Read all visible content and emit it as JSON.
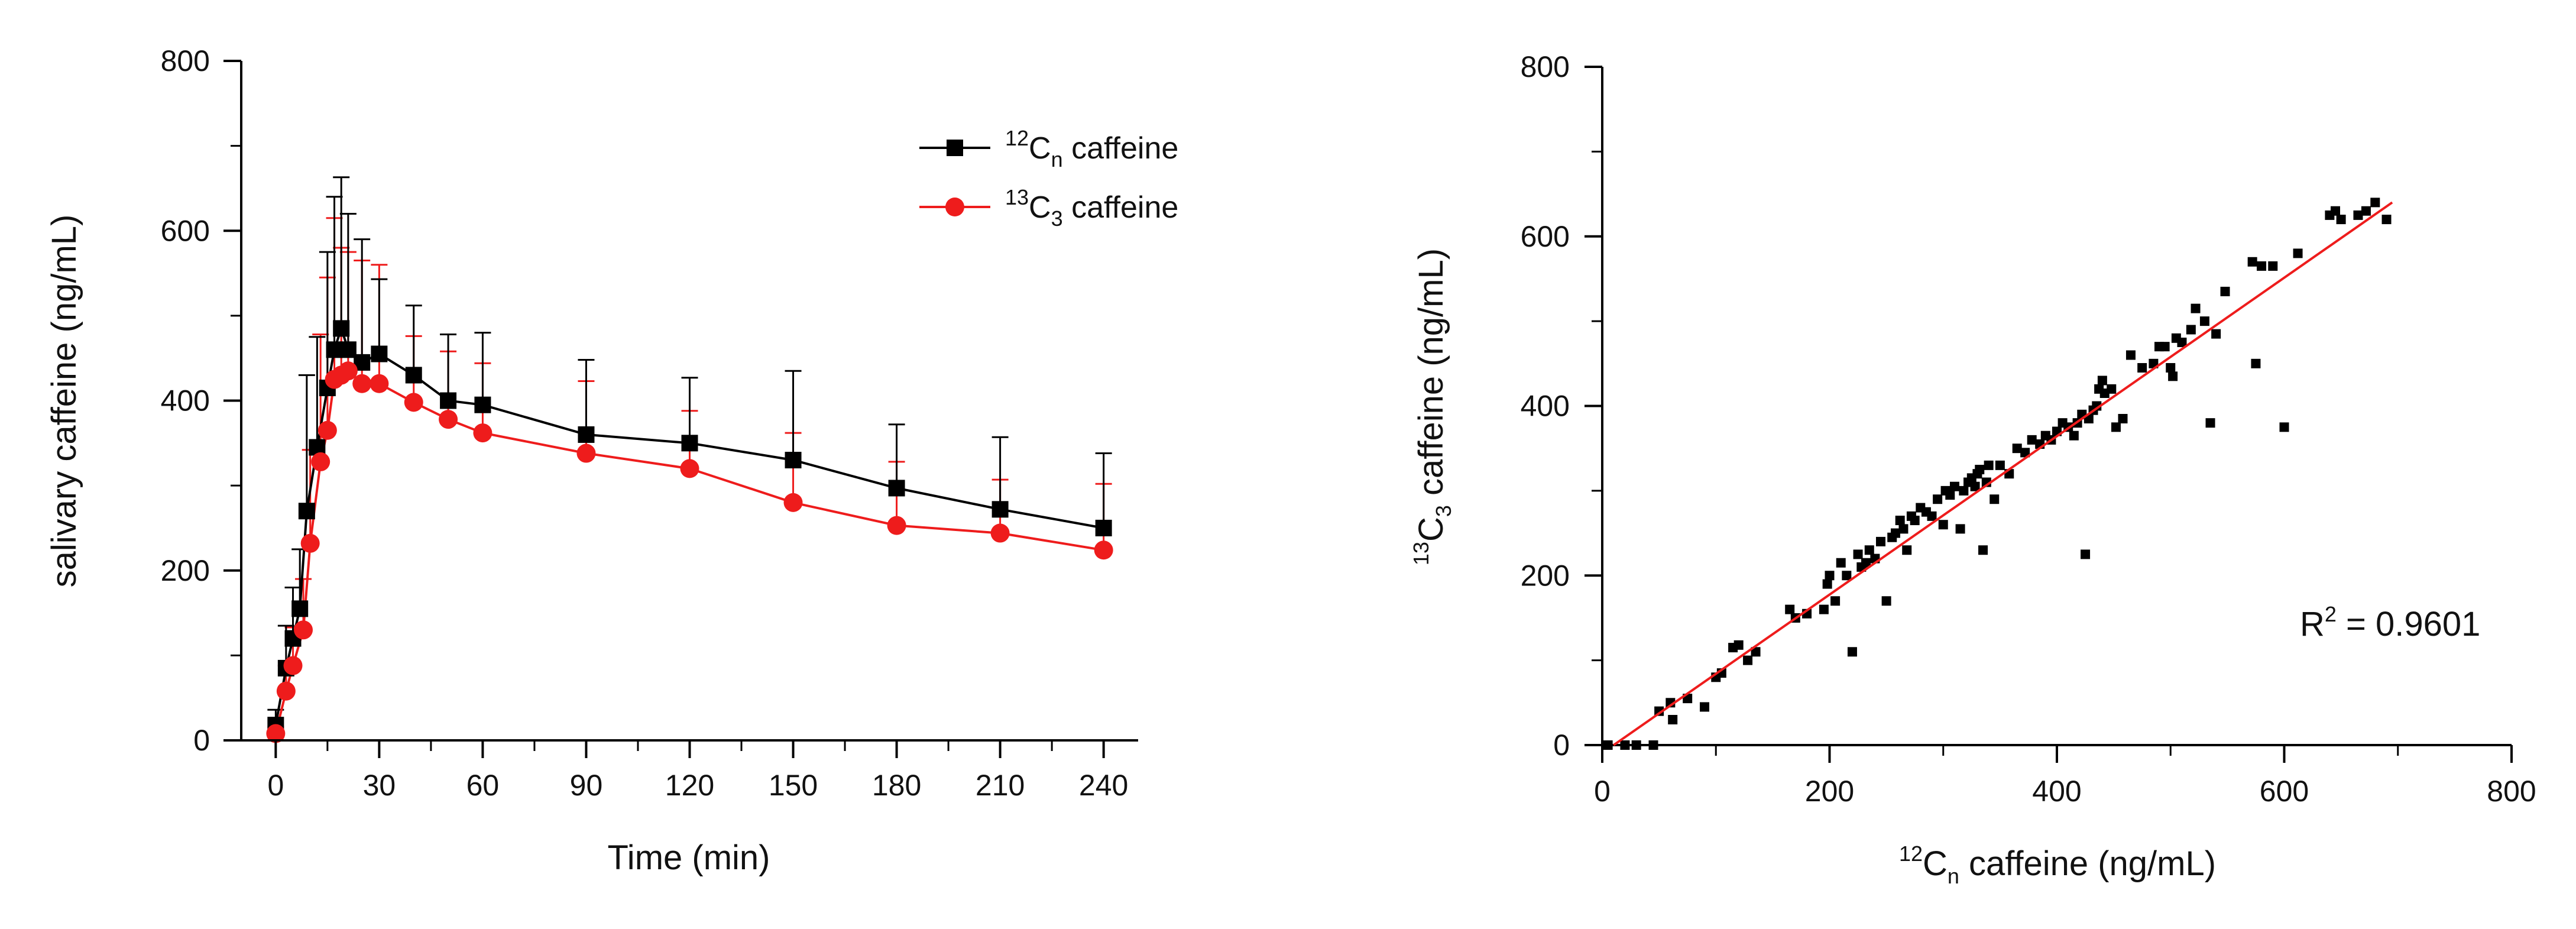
{
  "chart_data": [
    {
      "type": "line",
      "title": "",
      "xlabel": "Time (min)",
      "ylabel": "salivary caffeine (ng/mL)",
      "xlim": [
        -10,
        250
      ],
      "ylim": [
        0,
        800
      ],
      "xticks": [
        "0",
        "30",
        "60",
        "90",
        "120",
        "150",
        "180",
        "210",
        "240"
      ],
      "yticks": [
        "0",
        "200",
        "400",
        "600",
        "800"
      ],
      "legend_position": "top-right",
      "series": [
        {
          "name": "caffeine",
          "legend_sup": "12",
          "legend_base": "C",
          "legend_sub": "n",
          "color": "#000000",
          "marker": "square",
          "points": [
            {
              "x": 0,
              "y": 18,
              "err": 18
            },
            {
              "x": 3,
              "y": 85,
              "err": 50
            },
            {
              "x": 5,
              "y": 120,
              "err": 60
            },
            {
              "x": 7,
              "y": 155,
              "err": 70
            },
            {
              "x": 9,
              "y": 270,
              "err": 160
            },
            {
              "x": 12,
              "y": 345,
              "err": 130
            },
            {
              "x": 15,
              "y": 415,
              "err": 160
            },
            {
              "x": 17,
              "y": 460,
              "err": 180
            },
            {
              "x": 19,
              "y": 485,
              "err": 178
            },
            {
              "x": 21,
              "y": 460,
              "err": 160
            },
            {
              "x": 25,
              "y": 445,
              "err": 145
            },
            {
              "x": 30,
              "y": 455,
              "err": 88
            },
            {
              "x": 40,
              "y": 430,
              "err": 82
            },
            {
              "x": 50,
              "y": 400,
              "err": 78
            },
            {
              "x": 60,
              "y": 395,
              "err": 85
            },
            {
              "x": 90,
              "y": 360,
              "err": 88
            },
            {
              "x": 120,
              "y": 350,
              "err": 77
            },
            {
              "x": 150,
              "y": 330,
              "err": 105
            },
            {
              "x": 180,
              "y": 297,
              "err": 75
            },
            {
              "x": 210,
              "y": 272,
              "err": 85
            },
            {
              "x": 240,
              "y": 250,
              "err": 88
            }
          ]
        },
        {
          "name": "caffeine",
          "legend_sup": "13",
          "legend_base": "C",
          "legend_sub": "3",
          "color": "#ee1c1c",
          "marker": "circle",
          "points": [
            {
              "x": 0,
              "y": 8,
              "err": 8
            },
            {
              "x": 3,
              "y": 58,
              "err": 30
            },
            {
              "x": 5,
              "y": 88,
              "err": 45
            },
            {
              "x": 8,
              "y": 130,
              "err": 60
            },
            {
              "x": 10,
              "y": 232,
              "err": 110
            },
            {
              "x": 13,
              "y": 328,
              "err": 150
            },
            {
              "x": 15,
              "y": 365,
              "err": 180
            },
            {
              "x": 17,
              "y": 425,
              "err": 190
            },
            {
              "x": 19,
              "y": 430,
              "err": 150
            },
            {
              "x": 21,
              "y": 435,
              "err": 140
            },
            {
              "x": 25,
              "y": 420,
              "err": 145
            },
            {
              "x": 30,
              "y": 420,
              "err": 140
            },
            {
              "x": 40,
              "y": 398,
              "err": 78
            },
            {
              "x": 50,
              "y": 378,
              "err": 80
            },
            {
              "x": 60,
              "y": 362,
              "err": 82
            },
            {
              "x": 90,
              "y": 338,
              "err": 85
            },
            {
              "x": 120,
              "y": 320,
              "err": 68
            },
            {
              "x": 150,
              "y": 280,
              "err": 82
            },
            {
              "x": 180,
              "y": 253,
              "err": 75
            },
            {
              "x": 210,
              "y": 244,
              "err": 63
            },
            {
              "x": 240,
              "y": 224,
              "err": 78
            }
          ]
        }
      ]
    },
    {
      "type": "scatter",
      "title": "",
      "xlabel_sup": "12",
      "xlabel_base": "C",
      "xlabel_sub": "n",
      "xlabel_rest": " caffeine (ng/mL)",
      "ylabel_sup": "13",
      "ylabel_base": "C",
      "ylabel_sub": "3",
      "ylabel_rest": " caffeine (ng/mL)",
      "xlim": [
        0,
        800
      ],
      "ylim": [
        0,
        800
      ],
      "xticks": [
        "0",
        "200",
        "400",
        "600",
        "800"
      ],
      "yticks": [
        "0",
        "200",
        "400",
        "600",
        "800"
      ],
      "fit_line": {
        "x": [
          10,
          695
        ],
        "y": [
          0,
          640
        ],
        "color": "#ee1c1c"
      },
      "annotation": {
        "base": "R",
        "sup": "2",
        "rest": " = 0.9601"
      },
      "points_color": "#000000",
      "points": [
        [
          5,
          0
        ],
        [
          20,
          0
        ],
        [
          30,
          0
        ],
        [
          45,
          0
        ],
        [
          50,
          40
        ],
        [
          60,
          50
        ],
        [
          62,
          30
        ],
        [
          75,
          55
        ],
        [
          90,
          45
        ],
        [
          100,
          80
        ],
        [
          105,
          85
        ],
        [
          115,
          115
        ],
        [
          120,
          118
        ],
        [
          128,
          100
        ],
        [
          135,
          110
        ],
        [
          165,
          160
        ],
        [
          170,
          150
        ],
        [
          180,
          155
        ],
        [
          195,
          160
        ],
        [
          198,
          190
        ],
        [
          200,
          200
        ],
        [
          205,
          170
        ],
        [
          210,
          215
        ],
        [
          215,
          200
        ],
        [
          220,
          110
        ],
        [
          225,
          225
        ],
        [
          228,
          210
        ],
        [
          232,
          215
        ],
        [
          235,
          230
        ],
        [
          240,
          220
        ],
        [
          245,
          240
        ],
        [
          250,
          170
        ],
        [
          255,
          245
        ],
        [
          258,
          250
        ],
        [
          262,
          265
        ],
        [
          265,
          255
        ],
        [
          268,
          230
        ],
        [
          272,
          270
        ],
        [
          275,
          265
        ],
        [
          280,
          280
        ],
        [
          285,
          275
        ],
        [
          290,
          270
        ],
        [
          295,
          290
        ],
        [
          300,
          260
        ],
        [
          302,
          300
        ],
        [
          306,
          295
        ],
        [
          310,
          305
        ],
        [
          315,
          255
        ],
        [
          318,
          300
        ],
        [
          322,
          310
        ],
        [
          325,
          315
        ],
        [
          328,
          305
        ],
        [
          330,
          320
        ],
        [
          332,
          325
        ],
        [
          335,
          230
        ],
        [
          338,
          310
        ],
        [
          340,
          330
        ],
        [
          345,
          290
        ],
        [
          350,
          330
        ],
        [
          358,
          320
        ],
        [
          365,
          350
        ],
        [
          372,
          345
        ],
        [
          378,
          360
        ],
        [
          385,
          355
        ],
        [
          390,
          365
        ],
        [
          395,
          360
        ],
        [
          400,
          370
        ],
        [
          405,
          380
        ],
        [
          410,
          375
        ],
        [
          415,
          365
        ],
        [
          418,
          380
        ],
        [
          422,
          390
        ],
        [
          425,
          225
        ],
        [
          428,
          385
        ],
        [
          432,
          395
        ],
        [
          435,
          400
        ],
        [
          437,
          420
        ],
        [
          440,
          430
        ],
        [
          442,
          415
        ],
        [
          448,
          420
        ],
        [
          452,
          375
        ],
        [
          458,
          385
        ],
        [
          465,
          460
        ],
        [
          475,
          445
        ],
        [
          485,
          450
        ],
        [
          490,
          470
        ],
        [
          495,
          470
        ],
        [
          500,
          445
        ],
        [
          502,
          435
        ],
        [
          505,
          480
        ],
        [
          510,
          475
        ],
        [
          518,
          490
        ],
        [
          522,
          515
        ],
        [
          530,
          500
        ],
        [
          535,
          380
        ],
        [
          540,
          485
        ],
        [
          548,
          535
        ],
        [
          572,
          570
        ],
        [
          575,
          450
        ],
        [
          580,
          565
        ],
        [
          590,
          565
        ],
        [
          600,
          375
        ],
        [
          612,
          580
        ],
        [
          640,
          625
        ],
        [
          645,
          630
        ],
        [
          650,
          620
        ],
        [
          665,
          625
        ],
        [
          672,
          630
        ],
        [
          680,
          640
        ],
        [
          690,
          620
        ]
      ]
    }
  ]
}
